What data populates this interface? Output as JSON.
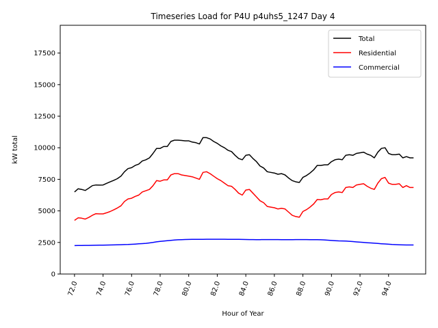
{
  "chart_data": {
    "type": "line",
    "title": "Timeseries Load for P4U p4uhs5_1247  Day 4",
    "xlabel": "Hour of Year",
    "ylabel": "kW total",
    "xlim": [
      71.0,
      96.6
    ],
    "ylim": [
      0,
      19700
    ],
    "xticks": [
      72,
      74,
      76,
      78,
      80,
      82,
      84,
      86,
      88,
      90,
      92,
      94
    ],
    "xtick_labels": [
      "72.0",
      "74.0",
      "76.0",
      "78.0",
      "80.0",
      "82.0",
      "84.0",
      "86.0",
      "88.0",
      "90.0",
      "92.0",
      "94.0"
    ],
    "yticks": [
      0,
      2500,
      5000,
      7500,
      10000,
      12500,
      15000,
      17500
    ],
    "ytick_labels": [
      "0",
      "2500",
      "5000",
      "7500",
      "10000",
      "12500",
      "15000",
      "17500"
    ],
    "legend_position": "top-right",
    "grid": false,
    "x": [
      72.0,
      72.25,
      72.5,
      72.75,
      73.0,
      73.25,
      73.5,
      73.75,
      74.0,
      74.25,
      74.5,
      74.75,
      75.0,
      75.25,
      75.5,
      75.75,
      76.0,
      76.25,
      76.5,
      76.75,
      77.0,
      77.25,
      77.5,
      77.75,
      78.0,
      78.25,
      78.5,
      78.75,
      79.0,
      79.25,
      79.5,
      79.75,
      80.0,
      80.25,
      80.5,
      80.75,
      81.0,
      81.25,
      81.5,
      81.75,
      82.0,
      82.25,
      82.5,
      82.75,
      83.0,
      83.25,
      83.5,
      83.75,
      84.0,
      84.25,
      84.5,
      84.75,
      85.0,
      85.25,
      85.5,
      85.75,
      86.0,
      86.25,
      86.5,
      86.75,
      87.0,
      87.25,
      87.5,
      87.75,
      88.0,
      88.25,
      88.5,
      88.75,
      89.0,
      89.25,
      89.5,
      89.75,
      90.0,
      90.25,
      90.5,
      90.75,
      91.0,
      91.25,
      91.5,
      91.75,
      92.0,
      92.25,
      92.5,
      92.75,
      93.0,
      93.25,
      93.5,
      93.75,
      94.0,
      94.25,
      94.5,
      94.75,
      95.0,
      95.25,
      95.5,
      95.75
    ],
    "series": [
      {
        "name": "Total",
        "color": "#000000",
        "values": [
          6500,
          6750,
          6700,
          6620,
          6800,
          7000,
          7050,
          7040,
          7050,
          7180,
          7300,
          7420,
          7550,
          7750,
          8100,
          8350,
          8420,
          8600,
          8700,
          8950,
          9050,
          9200,
          9550,
          9950,
          9950,
          10100,
          10100,
          10500,
          10600,
          10600,
          10580,
          10550,
          10550,
          10450,
          10400,
          10300,
          10800,
          10800,
          10700,
          10500,
          10350,
          10150,
          10000,
          9800,
          9700,
          9400,
          9150,
          9050,
          9400,
          9450,
          9150,
          8900,
          8550,
          8400,
          8100,
          8050,
          8000,
          7900,
          7950,
          7850,
          7600,
          7400,
          7300,
          7250,
          7650,
          7800,
          8000,
          8250,
          8600,
          8600,
          8650,
          8650,
          8900,
          9050,
          9100,
          9050,
          9400,
          9450,
          9400,
          9550,
          9600,
          9650,
          9500,
          9400,
          9200,
          9650,
          9950,
          10000,
          9550,
          9450,
          9450,
          9500,
          9200,
          9300,
          9200,
          9200
        ]
      },
      {
        "name": "Residential",
        "color": "#ff0000",
        "values": [
          4250,
          4450,
          4420,
          4350,
          4480,
          4650,
          4780,
          4760,
          4760,
          4850,
          4950,
          5080,
          5230,
          5400,
          5750,
          5950,
          6000,
          6150,
          6250,
          6500,
          6600,
          6700,
          7000,
          7400,
          7350,
          7450,
          7450,
          7850,
          7950,
          7950,
          7850,
          7800,
          7750,
          7700,
          7600,
          7500,
          8050,
          8100,
          7950,
          7750,
          7550,
          7400,
          7200,
          7000,
          6950,
          6700,
          6400,
          6250,
          6650,
          6700,
          6400,
          6100,
          5800,
          5650,
          5350,
          5300,
          5250,
          5150,
          5200,
          5150,
          4900,
          4650,
          4550,
          4500,
          4950,
          5100,
          5300,
          5550,
          5900,
          5880,
          5950,
          5950,
          6300,
          6450,
          6500,
          6450,
          6850,
          6900,
          6850,
          7050,
          7100,
          7150,
          6950,
          6800,
          6700,
          7200,
          7550,
          7650,
          7200,
          7100,
          7100,
          7150,
          6850,
          7000,
          6850,
          6850
        ]
      },
      {
        "name": "Commercial",
        "color": "#0000ff",
        "values": [
          2250,
          2260,
          2260,
          2265,
          2270,
          2275,
          2280,
          2285,
          2290,
          2295,
          2300,
          2305,
          2310,
          2320,
          2330,
          2340,
          2355,
          2370,
          2390,
          2410,
          2430,
          2460,
          2500,
          2550,
          2580,
          2610,
          2640,
          2670,
          2690,
          2710,
          2720,
          2735,
          2740,
          2745,
          2750,
          2750,
          2750,
          2755,
          2755,
          2755,
          2755,
          2755,
          2755,
          2750,
          2750,
          2745,
          2745,
          2740,
          2735,
          2730,
          2725,
          2720,
          2720,
          2725,
          2730,
          2730,
          2730,
          2725,
          2720,
          2720,
          2720,
          2720,
          2725,
          2730,
          2730,
          2725,
          2720,
          2715,
          2715,
          2710,
          2700,
          2680,
          2660,
          2640,
          2625,
          2620,
          2610,
          2590,
          2570,
          2545,
          2520,
          2500,
          2480,
          2460,
          2440,
          2420,
          2400,
          2380,
          2360,
          2340,
          2325,
          2315,
          2305,
          2300,
          2300,
          2300
        ]
      }
    ]
  }
}
